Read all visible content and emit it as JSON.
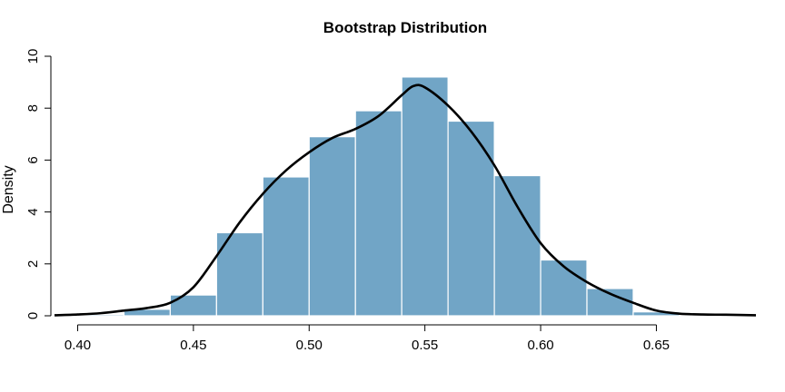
{
  "chart_data": {
    "type": "bar",
    "title": "Bootstrap Distribution",
    "xlabel": "",
    "ylabel": "Density",
    "xlim": [
      0.39,
      0.693
    ],
    "ylim": [
      0,
      10
    ],
    "x_ticks": [
      0.4,
      0.45,
      0.5,
      0.55,
      0.6,
      0.65
    ],
    "x_tick_labels": [
      "0.40",
      "0.45",
      "0.50",
      "0.55",
      "0.60",
      "0.65"
    ],
    "y_ticks": [
      0,
      2,
      4,
      6,
      8,
      10
    ],
    "y_tick_labels": [
      "0",
      "2",
      "4",
      "6",
      "8",
      "10"
    ],
    "bin_edges": [
      0.4,
      0.42,
      0.44,
      0.46,
      0.48,
      0.5,
      0.52,
      0.54,
      0.56,
      0.58,
      0.6,
      0.62,
      0.64,
      0.66
    ],
    "densities": [
      0.05,
      0.25,
      0.8,
      3.2,
      5.35,
      6.9,
      7.9,
      9.2,
      7.5,
      5.4,
      2.15,
      1.05,
      0.15
    ],
    "bar_color": "#71A5C6",
    "bar_edge_color": "#ffffff",
    "density_curve": {
      "color": "#000000",
      "x": [
        0.39,
        0.4,
        0.41,
        0.42,
        0.43,
        0.44,
        0.45,
        0.46,
        0.47,
        0.48,
        0.49,
        0.5,
        0.51,
        0.52,
        0.53,
        0.54,
        0.545,
        0.55,
        0.56,
        0.57,
        0.58,
        0.59,
        0.6,
        0.61,
        0.62,
        0.63,
        0.64,
        0.65,
        0.66,
        0.67,
        0.68,
        0.693
      ],
      "y": [
        0.02,
        0.05,
        0.1,
        0.2,
        0.3,
        0.5,
        1.1,
        2.3,
        3.6,
        4.7,
        5.6,
        6.3,
        6.85,
        7.2,
        7.7,
        8.5,
        8.85,
        8.8,
        8.1,
        7.1,
        5.8,
        4.2,
        2.8,
        1.9,
        1.3,
        0.85,
        0.5,
        0.2,
        0.08,
        0.05,
        0.04,
        0.02
      ]
    }
  }
}
